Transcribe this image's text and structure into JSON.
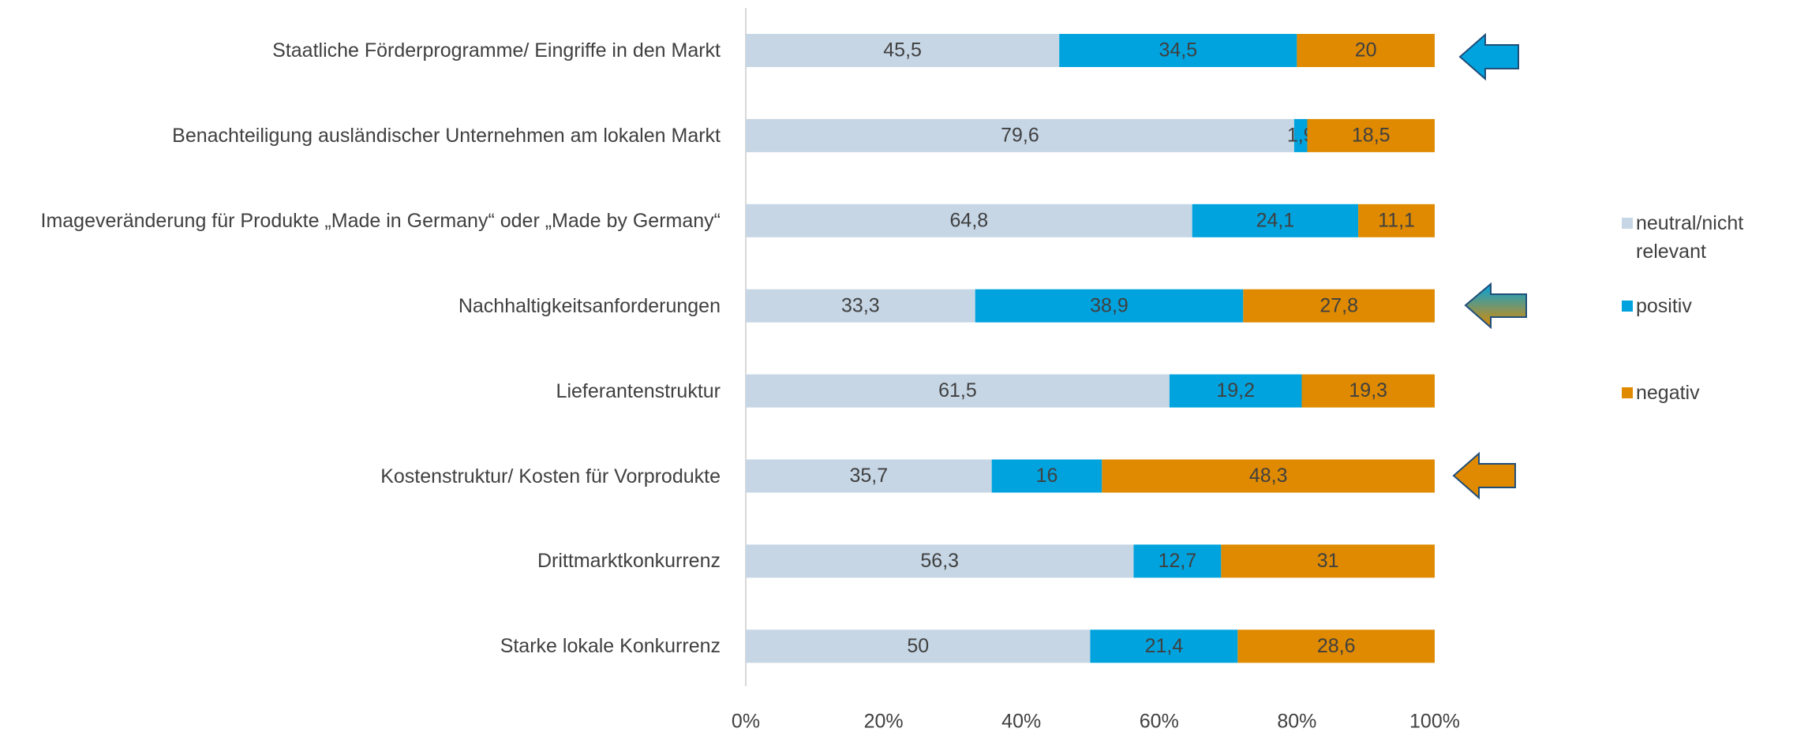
{
  "chart_data": {
    "type": "stacked_barh",
    "categories": [
      "Staatliche Förderprogramme/ Eingriffe in den Markt",
      "Benachteiligung ausländischer Unternehmen am lokalen Markt",
      "Imageveränderung für Produkte „Made in Germany“ oder „Made by Germany“",
      "Nachhaltigkeitsanforderungen",
      "Lieferantenstruktur",
      "Kostenstruktur/ Kosten für Vorprodukte",
      "Drittmarktkonkurrenz",
      "Starke lokale Konkurrenz"
    ],
    "series": [
      {
        "name": "neutral/nicht relevant",
        "color": "#c6d6e5",
        "values": [
          45.5,
          79.6,
          64.8,
          33.3,
          61.5,
          35.7,
          56.3,
          50
        ],
        "value_labels": [
          "45,5",
          "79,6",
          "64,8",
          "33,3",
          "61,5",
          "35,7",
          "56,3",
          "50"
        ]
      },
      {
        "name": "positiv",
        "color": "#00a3de",
        "values": [
          34.5,
          1.9,
          24.1,
          38.9,
          19.2,
          16,
          12.7,
          21.4
        ],
        "value_labels": [
          "34,5",
          "1,9",
          "24,1",
          "38,9",
          "19,2",
          "16",
          "12,7",
          "21,4"
        ]
      },
      {
        "name": "negativ",
        "color": "#df8a00",
        "values": [
          20,
          18.5,
          11.1,
          27.8,
          19.3,
          48.3,
          31,
          28.6
        ],
        "value_labels": [
          "20",
          "18,5",
          "11,1",
          "27,8",
          "19,3",
          "48,3",
          "31",
          "28,6"
        ]
      }
    ],
    "xlim": [
      0,
      100
    ],
    "xticks": [
      {
        "value": 0,
        "label": "0%"
      },
      {
        "value": 20,
        "label": "20%"
      },
      {
        "value": 40,
        "label": "40%"
      },
      {
        "value": 60,
        "label": "60%"
      },
      {
        "value": 80,
        "label": "80%"
      },
      {
        "value": 100,
        "label": "100%"
      }
    ],
    "grid": false,
    "legend": "right"
  }
}
